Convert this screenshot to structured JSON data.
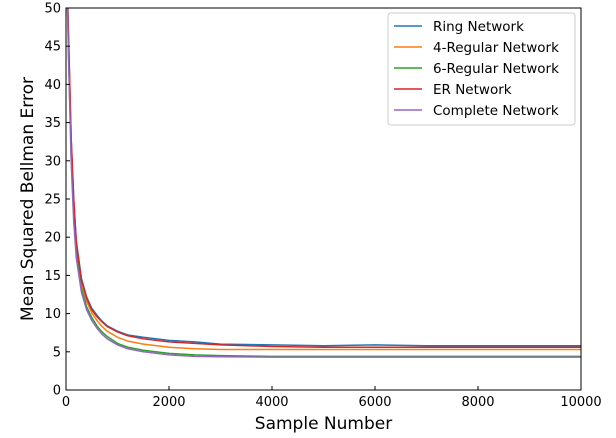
{
  "chart_data": {
    "type": "line",
    "title": "",
    "xlabel": "Sample Number",
    "ylabel": "Mean Squared Bellman Error",
    "xlim": [
      0,
      10000
    ],
    "ylim": [
      0,
      50
    ],
    "xticks": [
      0,
      2000,
      4000,
      6000,
      8000,
      10000
    ],
    "yticks": [
      0,
      5,
      10,
      15,
      20,
      25,
      30,
      35,
      40,
      45,
      50
    ],
    "grid": false,
    "legend_position": "top-right",
    "x": [
      0,
      50,
      100,
      150,
      200,
      300,
      400,
      500,
      600,
      700,
      800,
      1000,
      1200,
      1500,
      2000,
      2500,
      3000,
      4000,
      5000,
      6000,
      7000,
      8000,
      9000,
      10000
    ],
    "series": [
      {
        "name": "Ring Network",
        "color": "#1f77b4",
        "values": [
          60,
          46,
          33,
          25,
          19.5,
          14.6,
          12.2,
          10.7,
          9.8,
          9.0,
          8.4,
          7.7,
          7.2,
          6.9,
          6.5,
          6.3,
          6.0,
          5.9,
          5.8,
          5.9,
          5.8,
          5.8,
          5.8,
          5.8
        ]
      },
      {
        "name": "4-Regular Network",
        "color": "#ff7f0e",
        "values": [
          60,
          45,
          32,
          24,
          18.8,
          14.0,
          11.6,
          10.1,
          9.1,
          8.3,
          7.7,
          6.9,
          6.4,
          6.0,
          5.6,
          5.4,
          5.3,
          5.3,
          5.3,
          5.3,
          5.3,
          5.3,
          5.3,
          5.3
        ]
      },
      {
        "name": "6-Regular Network",
        "color": "#2ca02c",
        "values": [
          60,
          44,
          31,
          23,
          18.0,
          13.3,
          10.9,
          9.5,
          8.4,
          7.6,
          7.0,
          6.1,
          5.6,
          5.2,
          4.8,
          4.6,
          4.5,
          4.4,
          4.4,
          4.4,
          4.4,
          4.4,
          4.4,
          4.4
        ]
      },
      {
        "name": "ER Network",
        "color": "#d62728",
        "values": [
          60,
          46,
          33,
          25,
          19.3,
          14.4,
          12.0,
          10.5,
          9.6,
          8.9,
          8.3,
          7.6,
          7.1,
          6.7,
          6.3,
          6.1,
          5.9,
          5.7,
          5.6,
          5.6,
          5.6,
          5.6,
          5.6,
          5.6
        ]
      },
      {
        "name": "Complete Network",
        "color": "#9467bd",
        "values": [
          60,
          43,
          30,
          22,
          17.3,
          12.8,
          10.5,
          9.1,
          8.1,
          7.3,
          6.7,
          5.9,
          5.4,
          5.0,
          4.6,
          4.4,
          4.35,
          4.3,
          4.3,
          4.3,
          4.3,
          4.3,
          4.3,
          4.3
        ]
      }
    ]
  }
}
